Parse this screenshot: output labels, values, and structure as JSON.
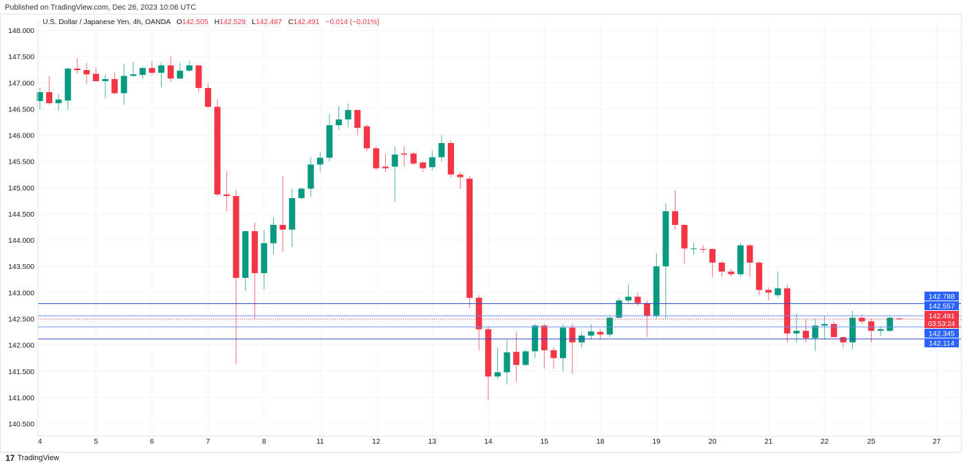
{
  "published": "Published on TradingView.com, Dec 26, 2023 10:06 UTC",
  "legend": {
    "symbol": "U.S. Dollar / Japanese Yen, 4h, OANDA",
    "o_label": "O",
    "o": "142.505",
    "h_label": "H",
    "h": "142.529",
    "l_label": "L",
    "l": "142.487",
    "c_label": "C",
    "c": "142.491",
    "change": "−0.014 (−0.01%)"
  },
  "footer": {
    "logo": "TradingView"
  },
  "colors": {
    "up": "#089981",
    "down": "#f23645",
    "level": "#2962ff",
    "current": "#f23645"
  },
  "chart_data": {
    "type": "candlestick",
    "title": "U.S. Dollar / Japanese Yen, 4h, OANDA",
    "ylim": [
      140.3,
      148.2
    ],
    "yticks": [
      "140.500",
      "141.000",
      "141.500",
      "142.000",
      "142.500",
      "143.000",
      "143.500",
      "144.000",
      "144.500",
      "145.000",
      "145.500",
      "146.000",
      "146.500",
      "147.000",
      "147.500",
      "148.000"
    ],
    "xticks": [
      {
        "i": 0,
        "label": "4"
      },
      {
        "i": 6,
        "label": "5"
      },
      {
        "i": 12,
        "label": "6"
      },
      {
        "i": 18,
        "label": "7"
      },
      {
        "i": 24,
        "label": "8"
      },
      {
        "i": 30,
        "label": "11"
      },
      {
        "i": 36,
        "label": "12"
      },
      {
        "i": 42,
        "label": "13"
      },
      {
        "i": 48,
        "label": "14"
      },
      {
        "i": 54,
        "label": "15"
      },
      {
        "i": 60,
        "label": "18"
      },
      {
        "i": 66,
        "label": "19"
      },
      {
        "i": 72,
        "label": "20"
      },
      {
        "i": 78,
        "label": "21"
      },
      {
        "i": 84,
        "label": "22"
      },
      {
        "i": 89,
        "label": "25"
      },
      {
        "i": 96,
        "label": "27"
      }
    ],
    "levels": [
      {
        "price": 142.788,
        "label": "142.788",
        "style": "dark"
      },
      {
        "price": 142.557,
        "label": "142.557",
        "style": "light"
      },
      {
        "price": 142.345,
        "label": "142.345",
        "style": "light"
      },
      {
        "price": 142.114,
        "label": "142.114",
        "style": "dark"
      }
    ],
    "current": {
      "price": 142.491,
      "label": "142.491",
      "countdown": "03:53:24"
    },
    "candles_ohlc": [
      [
        146.65,
        146.9,
        146.49,
        146.82
      ],
      [
        146.82,
        147.12,
        146.58,
        146.61
      ],
      [
        146.61,
        146.78,
        146.47,
        146.68
      ],
      [
        146.66,
        147.28,
        146.49,
        147.27
      ],
      [
        147.27,
        147.46,
        147.17,
        147.24
      ],
      [
        147.24,
        147.38,
        146.98,
        147.16
      ],
      [
        147.17,
        147.29,
        147.02,
        147.03
      ],
      [
        147.03,
        147.16,
        146.7,
        147.07
      ],
      [
        147.07,
        147.2,
        146.78,
        146.8
      ],
      [
        146.8,
        147.35,
        146.58,
        147.13
      ],
      [
        147.13,
        147.4,
        147.12,
        147.16
      ],
      [
        147.15,
        147.3,
        147.08,
        147.28
      ],
      [
        147.28,
        147.41,
        147.15,
        147.19
      ],
      [
        147.19,
        147.38,
        146.91,
        147.33
      ],
      [
        147.33,
        147.5,
        147.02,
        147.08
      ],
      [
        147.08,
        147.38,
        147.07,
        147.23
      ],
      [
        147.23,
        147.42,
        147.21,
        147.33
      ],
      [
        147.33,
        147.33,
        146.82,
        146.9
      ],
      [
        146.9,
        146.99,
        146.52,
        146.54
      ],
      [
        146.54,
        146.68,
        144.84,
        144.87
      ],
      [
        144.87,
        145.31,
        144.55,
        144.84
      ],
      [
        144.84,
        144.96,
        141.63,
        143.28
      ],
      [
        143.28,
        144.18,
        143.04,
        144.17
      ],
      [
        144.17,
        144.33,
        142.5,
        143.37
      ],
      [
        143.37,
        144.19,
        143.06,
        143.94
      ],
      [
        143.94,
        144.42,
        143.73,
        144.29
      ],
      [
        144.29,
        145.22,
        143.77,
        144.2
      ],
      [
        144.2,
        144.98,
        143.87,
        144.8
      ],
      [
        144.8,
        145.0,
        144.78,
        144.98
      ],
      [
        144.98,
        145.59,
        144.83,
        145.44
      ],
      [
        145.44,
        145.68,
        145.31,
        145.57
      ],
      [
        145.57,
        146.4,
        145.5,
        146.19
      ],
      [
        146.19,
        146.55,
        146.1,
        146.3
      ],
      [
        146.3,
        146.6,
        146.15,
        146.48
      ],
      [
        146.48,
        146.48,
        146.0,
        146.14
      ],
      [
        146.17,
        146.2,
        145.7,
        145.75
      ],
      [
        145.75,
        145.78,
        145.33,
        145.37
      ],
      [
        145.4,
        145.65,
        145.3,
        145.37
      ],
      [
        145.4,
        145.78,
        144.73,
        145.63
      ],
      [
        145.65,
        145.78,
        145.4,
        145.63
      ],
      [
        145.65,
        145.68,
        145.43,
        145.46
      ],
      [
        145.48,
        145.5,
        145.3,
        145.37
      ],
      [
        145.39,
        145.7,
        145.33,
        145.58
      ],
      [
        145.58,
        146.0,
        145.5,
        145.85
      ],
      [
        145.85,
        145.9,
        145.2,
        145.25
      ],
      [
        145.25,
        145.3,
        144.98,
        145.2
      ],
      [
        145.17,
        145.22,
        142.7,
        142.9
      ],
      [
        142.9,
        142.95,
        141.9,
        142.3
      ],
      [
        142.3,
        142.35,
        140.95,
        141.4
      ],
      [
        141.4,
        141.95,
        141.35,
        141.48
      ],
      [
        141.48,
        142.1,
        141.25,
        141.86
      ],
      [
        141.87,
        142.25,
        141.3,
        141.62
      ],
      [
        141.62,
        141.9,
        141.6,
        141.88
      ],
      [
        141.88,
        142.4,
        141.75,
        142.37
      ],
      [
        142.37,
        142.4,
        141.55,
        141.9
      ],
      [
        141.9,
        141.95,
        141.55,
        141.75
      ],
      [
        141.75,
        142.4,
        141.5,
        142.33
      ],
      [
        142.33,
        142.4,
        141.45,
        142.05
      ],
      [
        142.05,
        142.25,
        141.95,
        142.18
      ],
      [
        142.18,
        142.4,
        142.1,
        142.26
      ],
      [
        142.25,
        142.3,
        142.1,
        142.2
      ],
      [
        142.2,
        142.55,
        142.15,
        142.52
      ],
      [
        142.52,
        142.9,
        142.5,
        142.85
      ],
      [
        142.85,
        143.15,
        142.8,
        142.92
      ],
      [
        142.92,
        143.0,
        142.75,
        142.8
      ],
      [
        142.8,
        142.85,
        142.15,
        142.55
      ],
      [
        142.55,
        143.75,
        142.5,
        143.5
      ],
      [
        143.5,
        144.7,
        142.5,
        144.55
      ],
      [
        144.55,
        144.95,
        144.2,
        144.29
      ],
      [
        144.29,
        144.3,
        143.55,
        143.84
      ],
      [
        143.83,
        143.95,
        143.72,
        143.84
      ],
      [
        143.83,
        143.9,
        143.75,
        143.82
      ],
      [
        143.83,
        143.84,
        143.3,
        143.57
      ],
      [
        143.57,
        143.6,
        143.3,
        143.4
      ],
      [
        143.4,
        143.45,
        143.3,
        143.35
      ],
      [
        143.35,
        143.95,
        143.3,
        143.9
      ],
      [
        143.9,
        143.92,
        143.3,
        143.57
      ],
      [
        143.57,
        143.6,
        142.95,
        143.05
      ],
      [
        143.05,
        143.1,
        142.85,
        143.0
      ],
      [
        142.95,
        143.4,
        142.9,
        143.08
      ],
      [
        143.08,
        143.15,
        142.05,
        142.22
      ],
      [
        142.22,
        142.6,
        142.05,
        142.27
      ],
      [
        142.27,
        142.5,
        142.05,
        142.13
      ],
      [
        142.13,
        142.5,
        141.88,
        142.37
      ],
      [
        142.37,
        142.55,
        142.1,
        142.4
      ],
      [
        142.4,
        142.45,
        142.15,
        142.15
      ],
      [
        142.15,
        142.15,
        141.95,
        142.05
      ],
      [
        142.05,
        142.65,
        141.92,
        142.52
      ],
      [
        142.52,
        142.58,
        142.4,
        142.45
      ],
      [
        142.45,
        142.5,
        142.05,
        142.27
      ],
      [
        142.27,
        142.35,
        142.17,
        142.3
      ],
      [
        142.27,
        142.55,
        142.25,
        142.52
      ],
      [
        142.505,
        142.529,
        142.487,
        142.491
      ]
    ]
  }
}
